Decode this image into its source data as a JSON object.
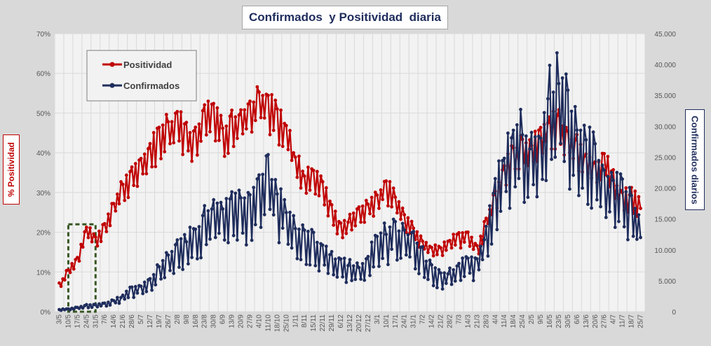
{
  "chart_data": {
    "type": "line",
    "title": "Confirmados  y Positividad  diaria",
    "ylabel_left": "% Positividad",
    "ylabel_right": "Confirmados diarios",
    "xlabel": "",
    "grid": true,
    "legend_position": "top-left",
    "y_left": {
      "range": [
        0,
        70
      ],
      "ticks": [
        "0%",
        "10%",
        "20%",
        "30%",
        "40%",
        "50%",
        "60%",
        "70%"
      ]
    },
    "y_right": {
      "range": [
        0,
        45000
      ],
      "ticks": [
        "0",
        "5.000",
        "10.000",
        "15.000",
        "20.000",
        "25.000",
        "30.000",
        "35.000",
        "40.000",
        "45.000"
      ]
    },
    "x_tick_labels": [
      "3/5",
      "10/5",
      "17/5",
      "24/5",
      "31/5",
      "7/6",
      "14/6",
      "21/6",
      "28/6",
      "5/7",
      "12/7",
      "19/7",
      "26/7",
      "2/8",
      "9/8",
      "16/8",
      "23/8",
      "30/8",
      "6/9",
      "13/9",
      "20/9",
      "27/9",
      "4/10",
      "11/10",
      "18/10",
      "25/10",
      "1/11",
      "8/11",
      "15/11",
      "22/11",
      "29/11",
      "6/12",
      "13/12",
      "20/12",
      "27/12",
      "3/1",
      "10/1",
      "17/1",
      "24/1",
      "31/1",
      "7/2",
      "14/2",
      "21/2",
      "28/2",
      "7/3",
      "14/3",
      "21/3",
      "28/3",
      "4/4",
      "11/4",
      "18/4",
      "25/4",
      "2/5",
      "9/5",
      "16/5",
      "23/5",
      "30/5",
      "6/6",
      "13/6",
      "20/6",
      "27/6",
      "4/7",
      "11/7",
      "18/7",
      "25/7"
    ],
    "series": [
      {
        "name": "Positividad",
        "color": "#c00000",
        "axis": "left",
        "values_weekly": [
          6.5,
          10,
          13,
          20,
          18,
          21,
          26,
          30,
          34,
          36,
          40,
          42,
          45,
          46,
          44,
          42,
          47,
          48,
          44,
          46,
          48,
          50,
          51,
          51,
          48,
          44,
          37,
          32,
          34,
          30,
          25,
          20,
          22,
          24,
          26,
          28,
          31,
          27,
          23,
          20,
          17,
          15,
          15,
          17,
          18,
          19,
          15,
          22,
          28,
          35,
          39,
          40,
          40,
          43,
          46,
          46,
          43,
          40,
          37,
          35,
          37,
          32,
          28,
          28,
          26
        ]
      },
      {
        "name": "Confirmados",
        "color": "#1f2d5c",
        "axis": "right",
        "values_weekly": [
          300,
          400,
          600,
          900,
          1000,
          1100,
          1500,
          2200,
          3200,
          3600,
          4500,
          6500,
          8000,
          9000,
          10000,
          11000,
          13000,
          14000,
          14500,
          15000,
          15500,
          16000,
          18000,
          20000,
          17000,
          14000,
          12000,
          11000,
          10000,
          9000,
          8000,
          7000,
          6500,
          6000,
          7500,
          10000,
          11000,
          12000,
          11000,
          10000,
          8000,
          6000,
          5000,
          5500,
          6500,
          7000,
          7500,
          11000,
          17000,
          22000,
          24000,
          25000,
          23000,
          25000,
          30000,
          33000,
          30000,
          25000,
          24000,
          22000,
          20000,
          18000,
          17000,
          15000,
          12000
        ]
      }
    ],
    "annotations": [
      {
        "type": "dashed-rectangle",
        "color": "#385723",
        "x_range": [
          "10/5",
          "31/5"
        ],
        "y_range_left": [
          0,
          22
        ]
      }
    ],
    "legend": [
      {
        "label": "Positividad",
        "color": "#c00000"
      },
      {
        "label": "Confirmados",
        "color": "#1f2d5c"
      }
    ]
  }
}
